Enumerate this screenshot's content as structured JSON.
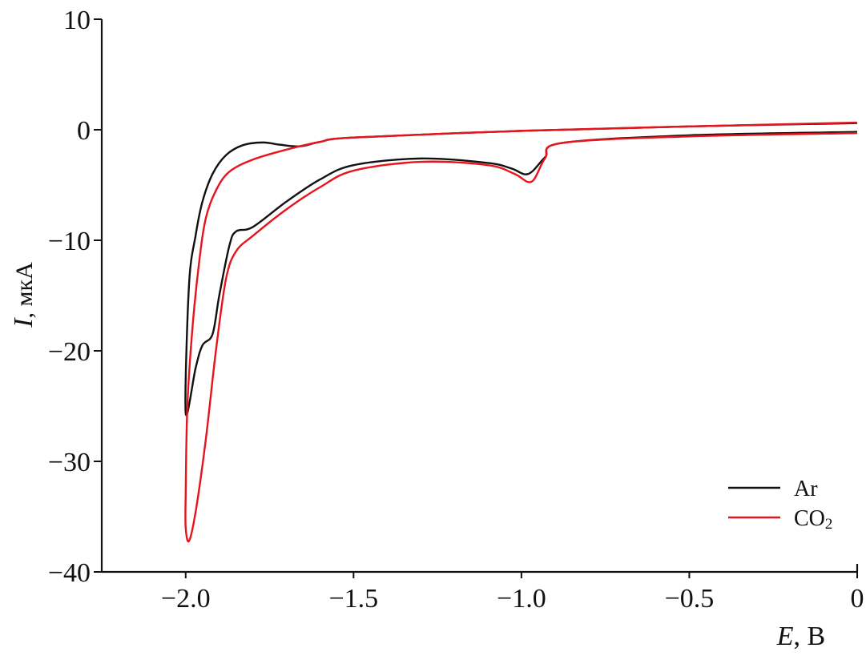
{
  "chart_data": {
    "type": "line",
    "title": "",
    "xlabel": {
      "symbol": "E",
      "unit": ", В"
    },
    "ylabel": {
      "symbol": "I",
      "unit": ", мкА"
    },
    "xlim": [
      -2.25,
      0
    ],
    "ylim": [
      -40,
      10
    ],
    "xticks": [
      -2.0,
      -1.5,
      -1.0,
      -0.5,
      0
    ],
    "xtick_labels": [
      "−2.0",
      "−1.5",
      "−1.0",
      "−0.5",
      "0"
    ],
    "yticks": [
      10,
      0,
      -10,
      -20,
      -30,
      -40
    ],
    "ytick_labels": [
      "10",
      "0",
      "−10",
      "−20",
      "−30",
      "−40"
    ],
    "grid": false,
    "legend_placement": "bottom-right",
    "series": [
      {
        "name": "Ar",
        "legend_main": "Ar",
        "legend_sub": "",
        "color": "#111111",
        "x": [
          0,
          -0.5,
          -0.88,
          -0.93,
          -0.98,
          -1.03,
          -1.1,
          -1.3,
          -1.5,
          -1.6,
          -1.7,
          -1.8,
          -1.85,
          -1.87,
          -1.9,
          -1.92,
          -1.95,
          -1.97,
          -2.0,
          -1.99,
          -1.97,
          -1.95,
          -1.92,
          -1.88,
          -1.83,
          -1.77,
          -1.72,
          -1.66,
          -1.6,
          -1.5,
          -1.0,
          -0.5,
          0
        ],
        "y": [
          -0.2,
          -0.5,
          -1.2,
          -2.5,
          -4.0,
          -3.5,
          -3.0,
          -2.6,
          -3.2,
          -4.5,
          -6.5,
          -8.8,
          -9.2,
          -10.5,
          -15,
          -18.5,
          -19.5,
          -21.5,
          -25.6,
          -14,
          -9.5,
          -6.5,
          -4,
          -2.3,
          -1.4,
          -1.15,
          -1.35,
          -1.5,
          -1.1,
          -0.7,
          -0.1,
          0.3,
          0.6
        ]
      },
      {
        "name": "CO2",
        "legend_main": "CO",
        "legend_sub": "2",
        "color": "#e8141c",
        "x": [
          0,
          -0.5,
          -0.88,
          -0.93,
          -0.97,
          -1.02,
          -1.1,
          -1.3,
          -1.5,
          -1.6,
          -1.7,
          -1.8,
          -1.85,
          -1.88,
          -1.91,
          -1.94,
          -1.97,
          -1.99,
          -2.0,
          -2.0,
          -1.995,
          -1.98,
          -1.96,
          -1.94,
          -1.91,
          -1.87,
          -1.8,
          -1.7,
          -1.6,
          -1.5,
          -1.0,
          -0.5,
          0
        ],
        "y": [
          -0.3,
          -0.6,
          -1.2,
          -2.6,
          -4.7,
          -4.0,
          -3.2,
          -2.9,
          -3.7,
          -5.2,
          -7.2,
          -9.6,
          -11,
          -13.5,
          -20,
          -28,
          -34.5,
          -37.2,
          -36,
          -33,
          -25,
          -18,
          -12,
          -8,
          -5.5,
          -3.8,
          -2.7,
          -1.8,
          -1.1,
          -0.7,
          -0.1,
          0.3,
          0.65
        ]
      }
    ]
  }
}
